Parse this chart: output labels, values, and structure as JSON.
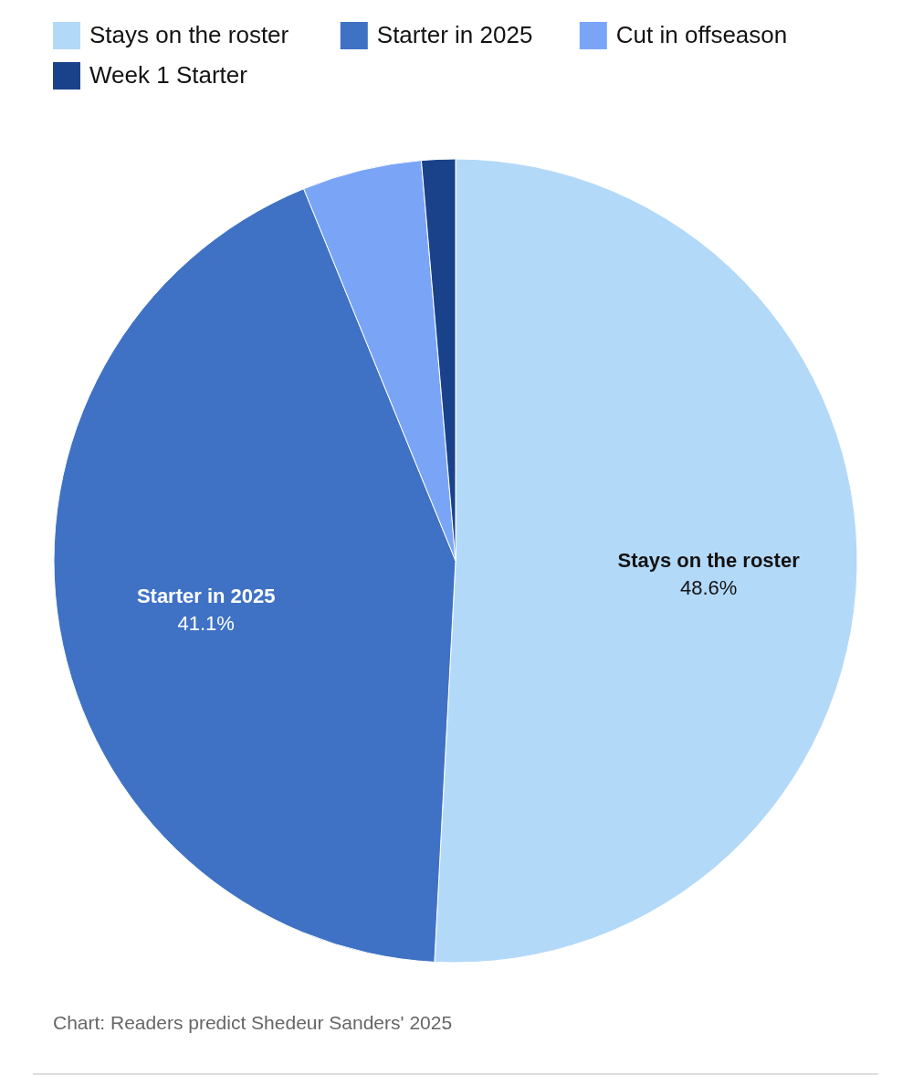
{
  "chart_data": {
    "type": "pie",
    "categories": [
      "Stays on the roster",
      "Starter in 2025",
      "Cut in offseason",
      "Week 1 Starter"
    ],
    "values": [
      48.6,
      41.1,
      4.6,
      1.3
    ],
    "colors": [
      "#b3d9f9",
      "#3f72c4",
      "#7aa5f7",
      "#1a428a"
    ],
    "value_labels": [
      "48.6%",
      "41.1%",
      null,
      null
    ],
    "legend": "top",
    "annotations": [
      "Chart: Readers predict Shedeur Sanders' 2025"
    ]
  }
}
